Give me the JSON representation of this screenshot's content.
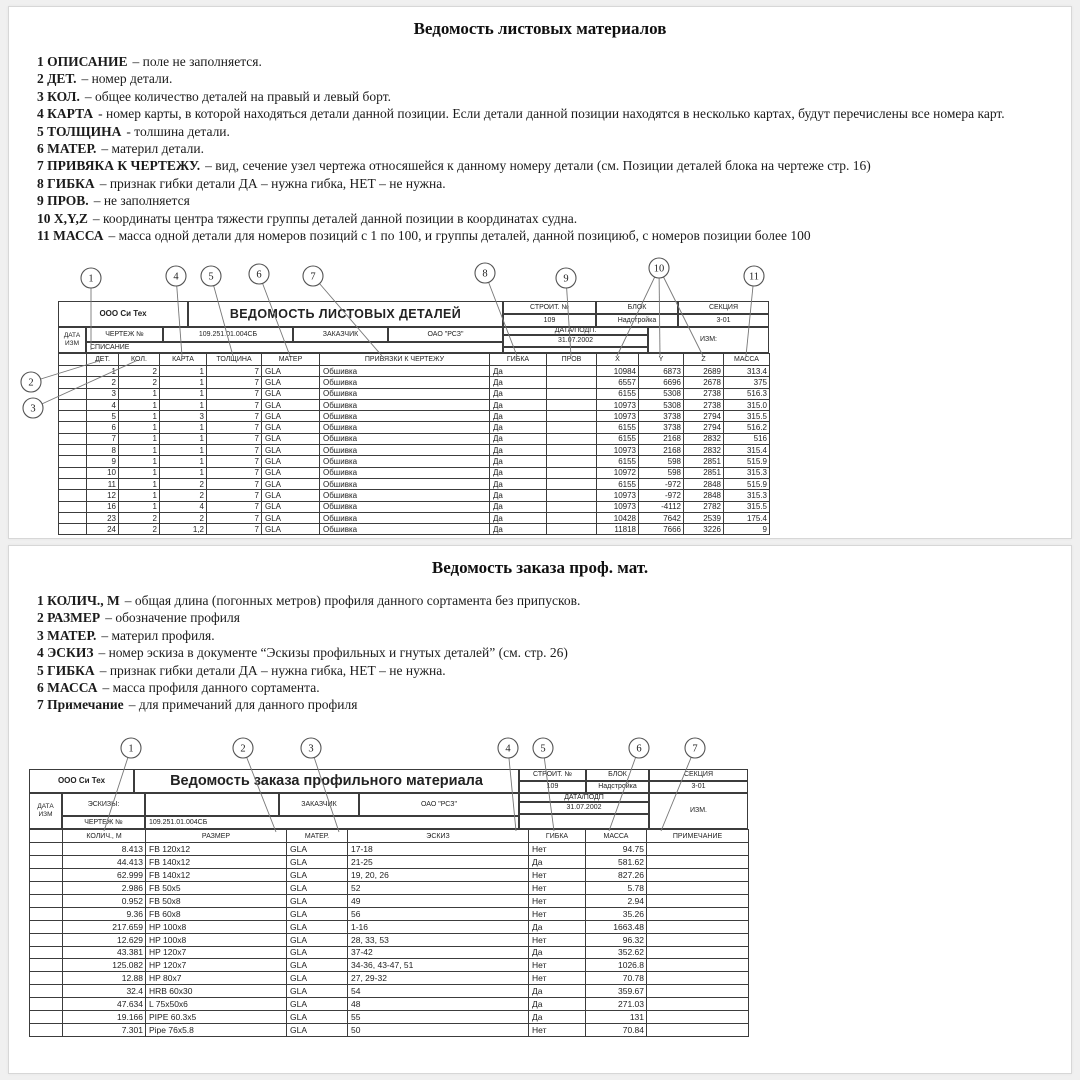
{
  "section1": {
    "title": "Ведомость листовых материалов",
    "notes": [
      {
        "term": "1 ОПИСАНИЕ",
        "text": "– поле не заполняется."
      },
      {
        "term": "2 ДЕТ.",
        "text": "– номер детали."
      },
      {
        "term": "3 КОЛ.",
        "text": "– общее количество деталей на правый и левый борт."
      },
      {
        "term": "4 КАРТА",
        "text": "- номер карты, в которой находяться детали данной позиции. Если детали данной позиции находятся в несколько картах, будут перечислены все номера карт."
      },
      {
        "term": "5 ТОЛЩИНА",
        "text": "- толшина детали."
      },
      {
        "term": "6 МАТЕР.",
        "text": "– материл детали."
      },
      {
        "term": "7 ПРИВЯКА К ЧЕРТЕЖУ.",
        "text": "– вид, сечение узел чертежа относяшейся к данному номеру детали (см. Позиции деталей блока на чертеже стр. 16)"
      },
      {
        "term": "8 ГИБКА",
        "text": "– признак гибки детали ДА – нужна гибка, НЕТ – не нужна."
      },
      {
        "term": "9 ПРОВ.",
        "text": "– не заполняется"
      },
      {
        "term": "10 X,Y,Z",
        "text": "– координаты центра тяжести группы деталей данной позиции в координатах судна."
      },
      {
        "term": "11 МАССА",
        "text": "– масса одной детали для номеров позиций с 1 по 100, и группы деталей, данной позициюб, с номеров позиции более 100"
      }
    ],
    "callout_labels": [
      "1",
      "2",
      "3",
      "4",
      "5",
      "6",
      "7",
      "8",
      "9",
      "10",
      "11"
    ],
    "table": {
      "company": "ООО Си Тех",
      "title": "ВЕДОМОСТЬ ЛИСТОВЫХ ДЕТАЛЕЙ",
      "stroit_label": "СТРОИТ. №",
      "stroit": "109",
      "blok_label": "БЛОК",
      "blok": "Надстройка",
      "sekcia_label": "СЕКЦИЯ",
      "sekcia": "3-01",
      "data_izm": "ДАТА ИЗМ",
      "chertezh_label": "ЧЕРТЕЖ №",
      "chertezh": "109.251.01.004СБ",
      "zakazchik_label": "ЗАКАЗЧИК",
      "zakazchik": "ОАО \"РСЗ\"",
      "datapodp_label": "ДАТА/ПОДП.",
      "datapodp": "31.07.2002",
      "izm_label": "ИЗМ:",
      "spisanie": "СПИСАНИЕ",
      "headers": [
        "ДЕТ.",
        "КОЛ.",
        "КАРТА",
        "ТОЛЩИНА",
        "МАТЕР",
        "ПРИВЯЗКИ К ЧЕРТЕЖУ",
        "ГИБКА",
        "ПРОВ",
        "X",
        "Y",
        "Z",
        "МАССА"
      ],
      "rows": [
        [
          "1",
          "2",
          "1",
          "7",
          "GLA",
          "Обшивка",
          "Да",
          "",
          "10984",
          "6873",
          "2689",
          "313.4"
        ],
        [
          "2",
          "2",
          "1",
          "7",
          "GLA",
          "Обшивка",
          "Да",
          "",
          "6557",
          "6696",
          "2678",
          "375"
        ],
        [
          "3",
          "1",
          "1",
          "7",
          "GLA",
          "Обшивка",
          "Да",
          "",
          "6155",
          "5308",
          "2738",
          "516.3"
        ],
        [
          "4",
          "1",
          "1",
          "7",
          "GLA",
          "Обшивка",
          "Да",
          "",
          "10973",
          "5308",
          "2738",
          "315.0"
        ],
        [
          "5",
          "1",
          "3",
          "7",
          "GLA",
          "Обшивка",
          "Да",
          "",
          "10973",
          "3738",
          "2794",
          "315.5"
        ],
        [
          "6",
          "1",
          "1",
          "7",
          "GLA",
          "Обшивка",
          "Да",
          "",
          "6155",
          "3738",
          "2794",
          "516.2"
        ],
        [
          "7",
          "1",
          "1",
          "7",
          "GLA",
          "Обшивка",
          "Да",
          "",
          "6155",
          "2168",
          "2832",
          "516"
        ],
        [
          "8",
          "1",
          "1",
          "7",
          "GLA",
          "Обшивка",
          "Да",
          "",
          "10973",
          "2168",
          "2832",
          "315.4"
        ],
        [
          "9",
          "1",
          "1",
          "7",
          "GLA",
          "Обшивка",
          "Да",
          "",
          "6155",
          "598",
          "2851",
          "515.9"
        ],
        [
          "10",
          "1",
          "1",
          "7",
          "GLA",
          "Обшивка",
          "Да",
          "",
          "10972",
          "598",
          "2851",
          "315.3"
        ],
        [
          "11",
          "1",
          "2",
          "7",
          "GLA",
          "Обшивка",
          "Да",
          "",
          "6155",
          "-972",
          "2848",
          "515.9"
        ],
        [
          "12",
          "1",
          "2",
          "7",
          "GLA",
          "Обшивка",
          "Да",
          "",
          "10973",
          "-972",
          "2848",
          "315.3"
        ],
        [
          "16",
          "1",
          "4",
          "7",
          "GLA",
          "Обшивка",
          "Да",
          "",
          "10973",
          "-4112",
          "2782",
          "315.5"
        ],
        [
          "23",
          "2",
          "2",
          "7",
          "GLA",
          "Обшивка",
          "Да",
          "",
          "10428",
          "7642",
          "2539",
          "175.4"
        ],
        [
          "24",
          "2",
          "1,2",
          "7",
          "GLA",
          "Обшивка",
          "Да",
          "",
          "11818",
          "7666",
          "3226",
          "9"
        ]
      ]
    }
  },
  "section2": {
    "title": "Ведомость заказа проф. мат.",
    "notes": [
      {
        "term": "1 КОЛИЧ., М",
        "text": "– общая длина (погонных метров) профиля данного сортамента без припусков."
      },
      {
        "term": "2 РАЗМЕР",
        "text": "– обозначение профиля"
      },
      {
        "term": "3 МАТЕР.",
        "text": "– материл профиля."
      },
      {
        "term": "4 ЭСКИЗ",
        "text": "– номер эскиза в документе “Эскизы профильных и гнутых деталей” (см. стр. 26)"
      },
      {
        "term": "5 ГИБКА",
        "text": "– признак гибки детали ДА – нужна гибка, НЕТ – не нужна."
      },
      {
        "term": "6 МАССА",
        "text": "– масса профиля данного сортамента."
      },
      {
        "term": "7 Примечание",
        "text": "– для примечаний для данного профиля"
      }
    ],
    "callout_labels": [
      "1",
      "2",
      "3",
      "4",
      "5",
      "6",
      "7"
    ],
    "table": {
      "company": "ООО Си Тех",
      "title": "Ведомость заказа профильного материала",
      "stroit_label": "СТРОИТ. №",
      "stroit": "109",
      "blok_label": "БЛОК",
      "blok": "Надстройка",
      "sekcia_label": "СЕКЦИЯ",
      "sekcia": "3-01",
      "data_izm": "ДАТА ИЗМ",
      "eskizy_label": "ЭСКИЗЫ:",
      "chertezh_label": "ЧЕРТЕЖ №",
      "chertezh": "109.251.01.004СБ",
      "zakazchik_label": "ЗАКАЗЧИК",
      "zakazchik": "ОАО \"РСЗ\"",
      "datapodp_label": "ДАТА/ПОДП",
      "datapodp": "31.07.2002",
      "izm_label": "ИЗМ.",
      "headers": [
        "КОЛИЧ., М",
        "РАЗМЕР",
        "МАТЕР.",
        "ЭСКИЗ",
        "ГИБКА",
        "МАССА",
        "ПРИМЕЧАНИЕ"
      ],
      "rows": [
        [
          "8.413",
          "FB 120x12",
          "GLA",
          "17-18",
          "Нет",
          "94.75",
          ""
        ],
        [
          "44.413",
          "FB 140x12",
          "GLA",
          "21-25",
          "Да",
          "581.62",
          ""
        ],
        [
          "62.999",
          "FB 140x12",
          "GLA",
          "19, 20, 26",
          "Нет",
          "827.26",
          ""
        ],
        [
          "2.986",
          "FB 50x5",
          "GLA",
          "52",
          "Нет",
          "5.78",
          ""
        ],
        [
          "0.952",
          "FB 50x8",
          "GLA",
          "49",
          "Нет",
          "2.94",
          ""
        ],
        [
          "9.36",
          "FB 60x8",
          "GLA",
          "56",
          "Нет",
          "35.26",
          ""
        ],
        [
          "217.659",
          "HP 100x8",
          "GLA",
          "1-16",
          "Да",
          "1663.48",
          ""
        ],
        [
          "12.629",
          "HP 100x8",
          "GLA",
          "28, 33, 53",
          "Нет",
          "96.32",
          ""
        ],
        [
          "43.381",
          "HP 120x7",
          "GLA",
          "37-42",
          "Да",
          "352.62",
          ""
        ],
        [
          "125.082",
          "HP 120x7",
          "GLA",
          "34-36, 43-47, 51",
          "Нет",
          "1026.8",
          ""
        ],
        [
          "12.88",
          "HP 80x7",
          "GLA",
          "27, 29-32",
          "Нет",
          "70.78",
          ""
        ],
        [
          "32.4",
          "HRB 60x30",
          "GLA",
          "54",
          "Да",
          "359.67",
          ""
        ],
        [
          "47.634",
          "L 75x50x6",
          "GLA",
          "48",
          "Да",
          "271.03",
          ""
        ],
        [
          "19.166",
          "PIPE 60.3x5",
          "GLA",
          "55",
          "Да",
          "131",
          ""
        ],
        [
          "7.301",
          "Pipe 76x5.8",
          "GLA",
          "50",
          "Нет",
          "70.84",
          ""
        ]
      ]
    }
  }
}
